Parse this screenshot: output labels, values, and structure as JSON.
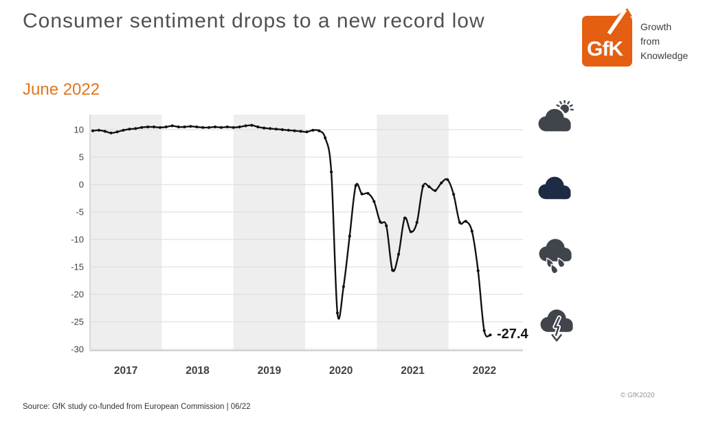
{
  "page": {
    "background": "#ffffff"
  },
  "header": {
    "title": "Consumer sentiment drops to a new record low",
    "logo": {
      "text": "GfK",
      "tagline": [
        "Growth",
        "from",
        "Knowledge"
      ],
      "color": "#e45f12"
    }
  },
  "subtitle": {
    "text": "June 2022",
    "color": "#e0761e"
  },
  "chart_data": {
    "type": "line",
    "frequency": "monthly",
    "x_start": "2017-01",
    "x_end": "2022-06",
    "categories": [
      "2017",
      "2018",
      "2019",
      "2020",
      "2021",
      "2022"
    ],
    "shaded_years": [
      "2017",
      "2019",
      "2021"
    ],
    "y_ticks": [
      10,
      5,
      0,
      -5,
      -10,
      -15,
      -20,
      -25,
      -30
    ],
    "ylim": [
      -30.25,
      12.75
    ],
    "grid": true,
    "legend_position": "none",
    "band_color": "#eeeeee",
    "grid_color": "#d9d9d9",
    "line_color": "#111111",
    "series": [
      {
        "name": "Consumer sentiment indicator",
        "values": [
          9.8,
          9.9,
          9.7,
          9.4,
          9.6,
          9.9,
          10.1,
          10.2,
          10.4,
          10.5,
          10.5,
          10.4,
          10.5,
          10.7,
          10.5,
          10.5,
          10.6,
          10.5,
          10.4,
          10.4,
          10.5,
          10.4,
          10.5,
          10.4,
          10.5,
          10.7,
          10.8,
          10.5,
          10.3,
          10.2,
          10.1,
          10.0,
          9.9,
          9.8,
          9.7,
          9.6,
          9.9,
          9.8,
          8.5,
          2.3,
          -23.4,
          -18.6,
          -9.4,
          -0.2,
          -1.7,
          -1.6,
          -3.1,
          -6.8,
          -7.5,
          -15.6,
          -12.7,
          -6.1,
          -8.6,
          -6.9,
          -0.3,
          -0.4,
          -1.1,
          0.3,
          0.9,
          -1.8,
          -6.9,
          -6.7,
          -8.5,
          -15.7,
          -26.6,
          -27.4
        ]
      }
    ],
    "end_label": "-27.4"
  },
  "annotation": {
    "end_value_label": "-27.4"
  },
  "weather_legend": [
    {
      "icon": "sun-behind-cloud-icon",
      "color": "#40454c"
    },
    {
      "icon": "cloud-icon",
      "color": "#1d2b44"
    },
    {
      "icon": "rain-cloud-icon",
      "color": "#40454c"
    },
    {
      "icon": "storm-cloud-down-arrow-icon",
      "color": "#40454c"
    }
  ],
  "footer": {
    "source": "Source: GfK study co-funded from European Commission | 06/22",
    "copyright": "© GfK2020"
  }
}
